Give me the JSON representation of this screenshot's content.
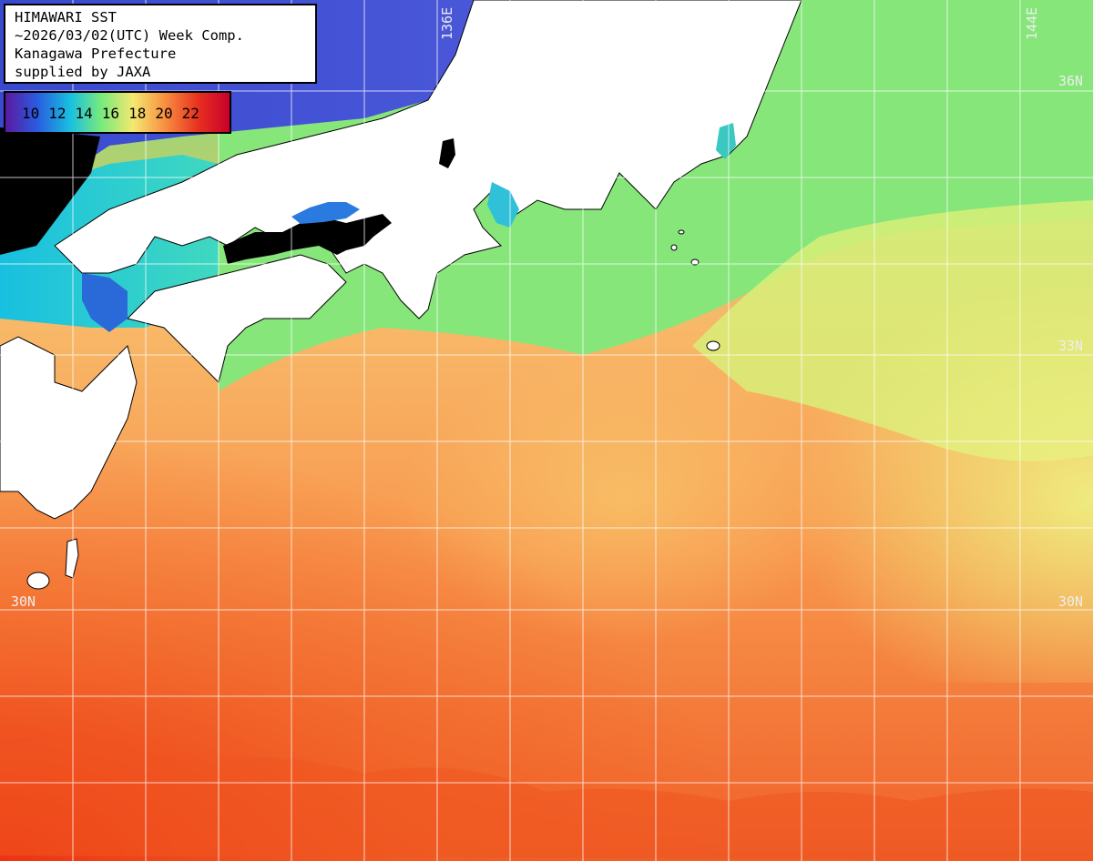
{
  "title": {
    "line1": "HIMAWARI SST",
    "line2": "~2026/03/02(UTC) Week Comp.",
    "line3": "Kanagawa Prefecture",
    "line4": "supplied by JAXA"
  },
  "legend": {
    "labels": [
      "10",
      "12",
      "14",
      "16",
      "18",
      "20",
      "22"
    ],
    "colors": [
      "#5a1aa0",
      "#2a5ae0",
      "#18c0e0",
      "#7aea7a",
      "#f4e870",
      "#f89040",
      "#e83020",
      "#c8002a"
    ]
  },
  "grid": {
    "lat_labels": [
      "36N",
      "33N",
      "30N"
    ],
    "lon_labels": [
      "136E",
      "144E"
    ]
  },
  "colors": {
    "land": "#ffffff",
    "cloud": "#000000",
    "grid": "#ffffff"
  }
}
